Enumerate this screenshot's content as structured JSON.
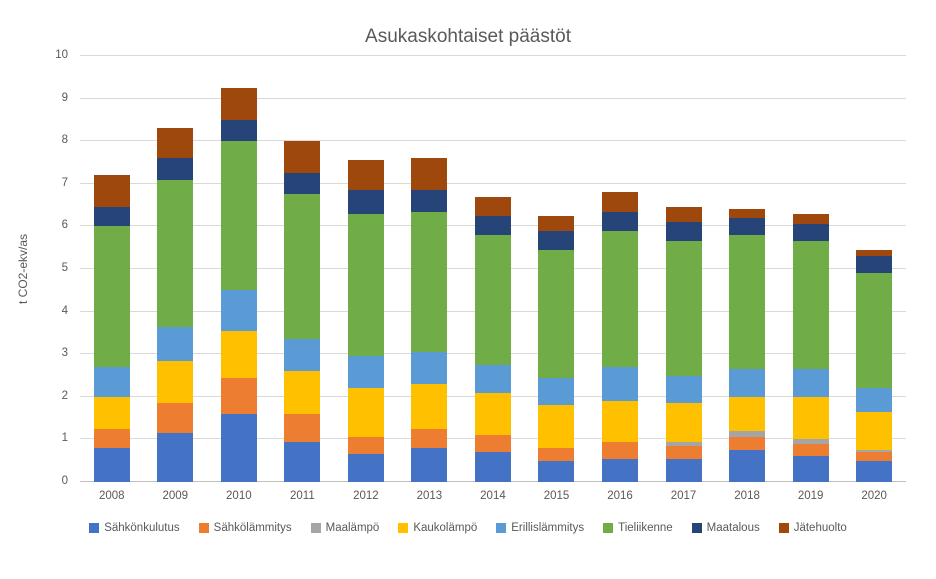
{
  "chart_data": {
    "type": "bar",
    "stacked": true,
    "title": "Asukaskohtaiset päästöt",
    "xlabel": "",
    "ylabel": "t CO2-ekv/as",
    "ylim": [
      0,
      10
    ],
    "ytick_step": 1,
    "grid": true,
    "legend_position": "bottom",
    "categories": [
      "2008",
      "2009",
      "2010",
      "2011",
      "2012",
      "2013",
      "2014",
      "2015",
      "2016",
      "2017",
      "2018",
      "2019",
      "2020"
    ],
    "series": [
      {
        "name": "Sähkönkulutus",
        "color": "#4472C4",
        "values": [
          0.8,
          1.15,
          1.6,
          0.95,
          0.65,
          0.8,
          0.7,
          0.5,
          0.55,
          0.55,
          0.75,
          0.6,
          0.5
        ]
      },
      {
        "name": "Sähkölämmitys",
        "color": "#ED7D31",
        "values": [
          0.45,
          0.7,
          0.85,
          0.65,
          0.4,
          0.45,
          0.4,
          0.3,
          0.4,
          0.3,
          0.3,
          0.3,
          0.2
        ]
      },
      {
        "name": "Maalämpö",
        "color": "#A5A5A5",
        "values": [
          0.0,
          0.0,
          0.0,
          0.0,
          0.0,
          0.0,
          0.0,
          0.0,
          0.0,
          0.1,
          0.15,
          0.1,
          0.05
        ]
      },
      {
        "name": "Kaukolämpö",
        "color": "#FFC000",
        "values": [
          0.75,
          1.0,
          1.1,
          1.0,
          1.15,
          1.05,
          1.0,
          1.0,
          0.95,
          0.9,
          0.8,
          1.0,
          0.9
        ]
      },
      {
        "name": "Erillislämmitys",
        "color": "#5B9BD5",
        "values": [
          0.7,
          0.8,
          0.95,
          0.75,
          0.75,
          0.75,
          0.65,
          0.65,
          0.8,
          0.65,
          0.65,
          0.65,
          0.55
        ]
      },
      {
        "name": "Tieliikenne",
        "color": "#70AD47",
        "values": [
          3.3,
          3.45,
          3.5,
          3.4,
          3.35,
          3.3,
          3.05,
          3.0,
          3.2,
          3.15,
          3.15,
          3.0,
          2.7
        ]
      },
      {
        "name": "Maatalous",
        "color": "#264478",
        "values": [
          0.45,
          0.5,
          0.5,
          0.5,
          0.55,
          0.5,
          0.45,
          0.45,
          0.45,
          0.45,
          0.4,
          0.4,
          0.4
        ]
      },
      {
        "name": "Jätehuolto",
        "color": "#9E480E",
        "values": [
          0.75,
          0.7,
          0.75,
          0.75,
          0.7,
          0.75,
          0.45,
          0.35,
          0.45,
          0.35,
          0.2,
          0.25,
          0.15
        ]
      }
    ],
    "totals": [
      7.2,
      8.3,
      9.25,
      8.0,
      7.55,
      7.6,
      6.7,
      6.25,
      6.8,
      6.45,
      6.4,
      6.3,
      5.45
    ]
  },
  "colors": {
    "gridline": "#d9d9d9",
    "axis_line": "#c0c0c0",
    "text": "#595959",
    "background": "#ffffff"
  }
}
